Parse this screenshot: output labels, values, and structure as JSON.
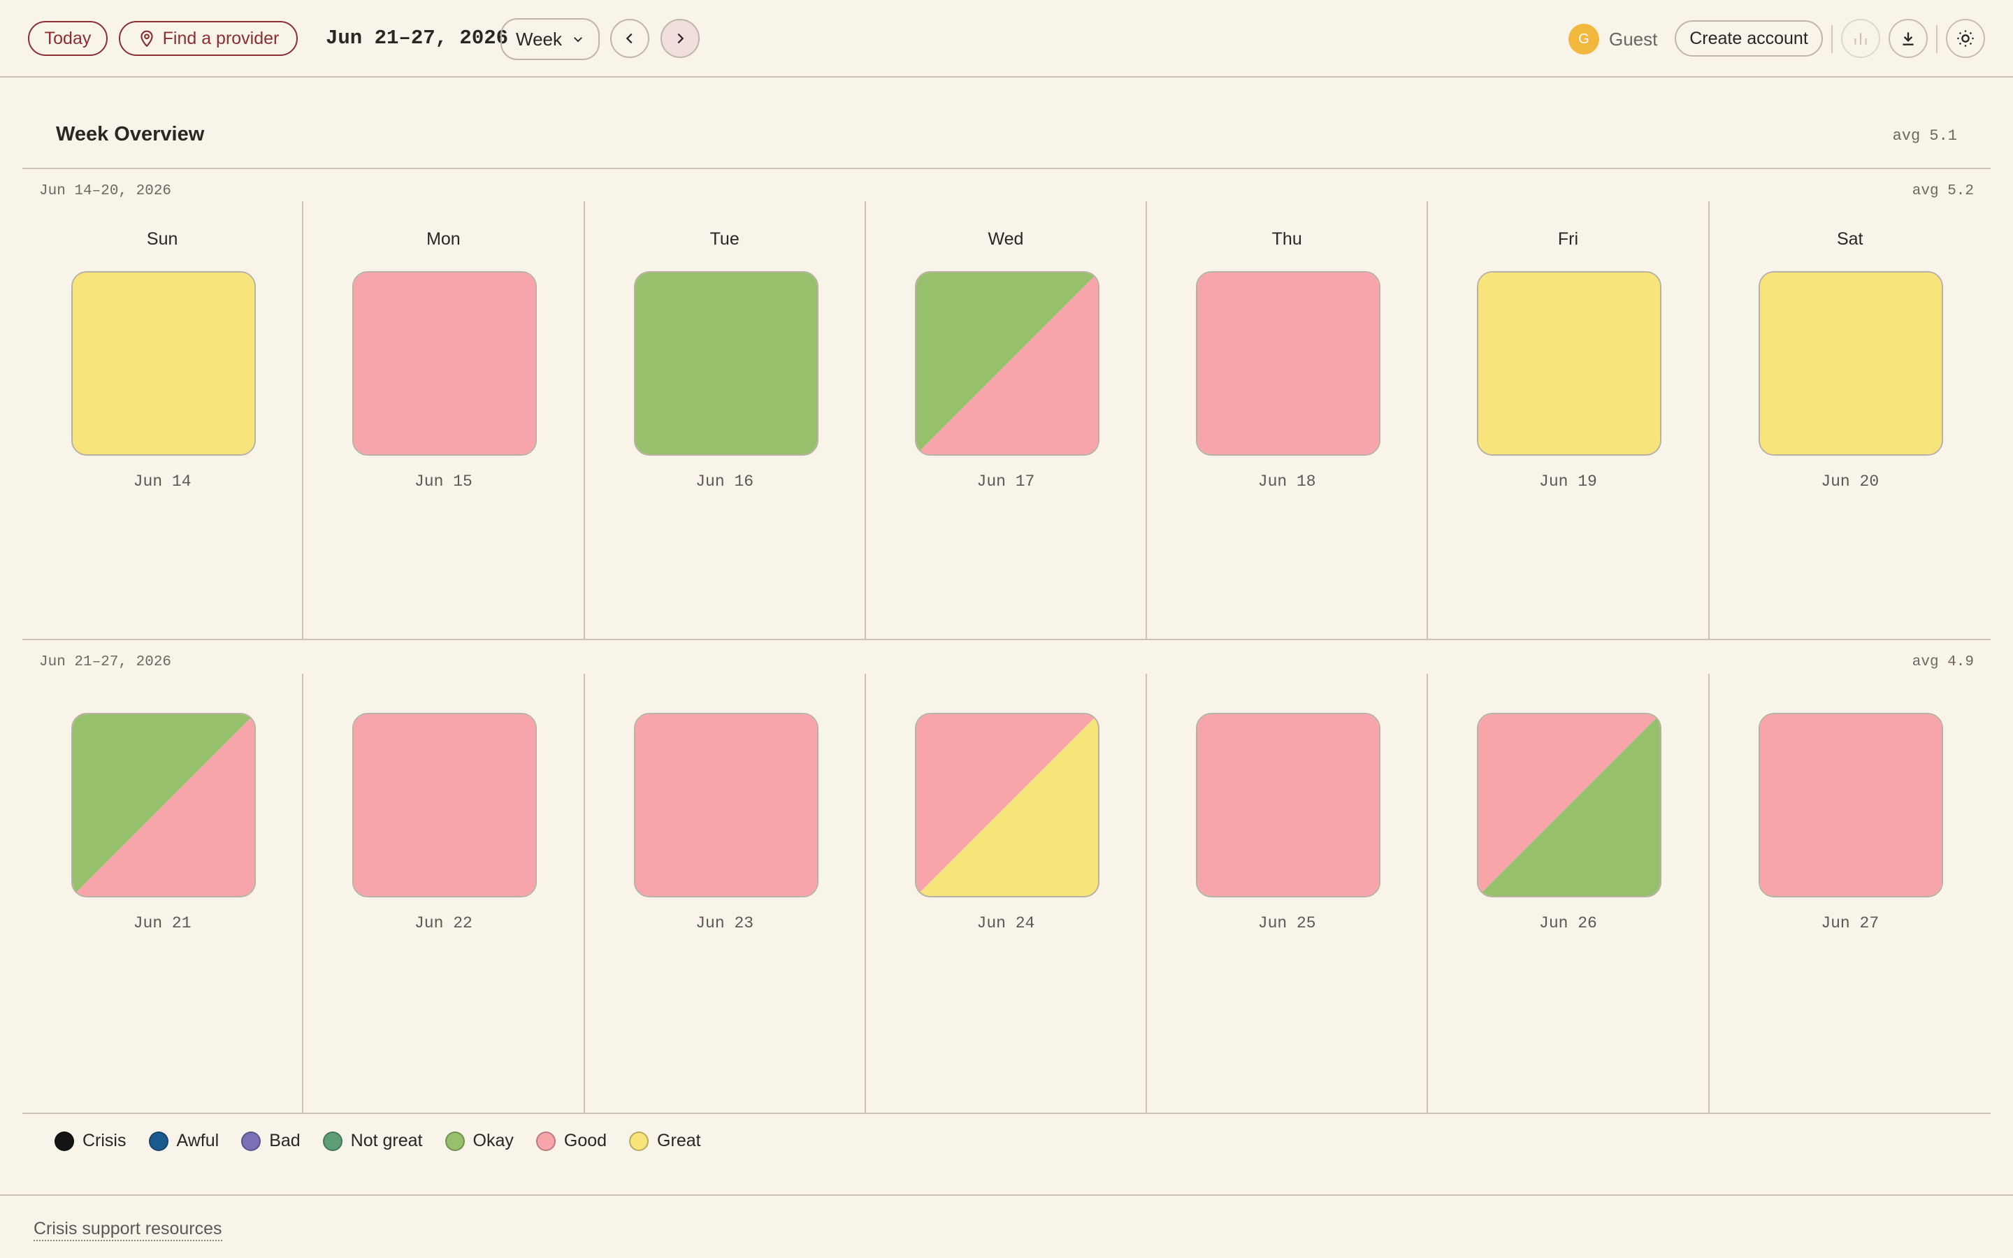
{
  "toolbar": {
    "today_label": "Today",
    "provider_label": "Find a provider",
    "date_range": "Jun 21–27, 2026",
    "view_select": "Week",
    "user_initial": "G",
    "user_name": "Guest",
    "create_account_label": "Create account"
  },
  "overview": {
    "title": "Week Overview",
    "avg": "avg 5.1"
  },
  "mood_colors": {
    "Crisis": "#141414",
    "Awful": "#1b5a8f",
    "Bad": "#7a70b8",
    "Not great": "#5e9e74",
    "Okay": "#97c06d",
    "Good": "#f7a5ab",
    "Great": "#f7e47b"
  },
  "weeks": [
    {
      "label": "Jun 14–20, 2026",
      "avg": "avg 5.2",
      "days": [
        {
          "name": "Sun",
          "date": "Jun 14",
          "moods": [
            "Great"
          ]
        },
        {
          "name": "Mon",
          "date": "Jun 15",
          "moods": [
            "Good"
          ]
        },
        {
          "name": "Tue",
          "date": "Jun 16",
          "moods": [
            "Okay"
          ]
        },
        {
          "name": "Wed",
          "date": "Jun 17",
          "moods": [
            "Okay",
            "Good"
          ]
        },
        {
          "name": "Thu",
          "date": "Jun 18",
          "moods": [
            "Good"
          ]
        },
        {
          "name": "Fri",
          "date": "Jun 19",
          "moods": [
            "Great"
          ]
        },
        {
          "name": "Sat",
          "date": "Jun 20",
          "moods": [
            "Great"
          ]
        }
      ]
    },
    {
      "label": "Jun 21–27, 2026",
      "avg": "avg 4.9",
      "days": [
        {
          "name": "",
          "date": "Jun 21",
          "moods": [
            "Okay",
            "Good"
          ]
        },
        {
          "name": "",
          "date": "Jun 22",
          "moods": [
            "Good"
          ]
        },
        {
          "name": "",
          "date": "Jun 23",
          "moods": [
            "Good"
          ]
        },
        {
          "name": "",
          "date": "Jun 24",
          "moods": [
            "Good",
            "Great"
          ]
        },
        {
          "name": "",
          "date": "Jun 25",
          "moods": [
            "Good"
          ]
        },
        {
          "name": "",
          "date": "Jun 26",
          "moods": [
            "Good",
            "Okay"
          ]
        },
        {
          "name": "",
          "date": "Jun 27",
          "moods": [
            "Good"
          ]
        }
      ]
    }
  ],
  "legend": [
    "Crisis",
    "Awful",
    "Bad",
    "Not great",
    "Okay",
    "Good",
    "Great"
  ],
  "footer": {
    "crisis_link": "Crisis support resources"
  }
}
